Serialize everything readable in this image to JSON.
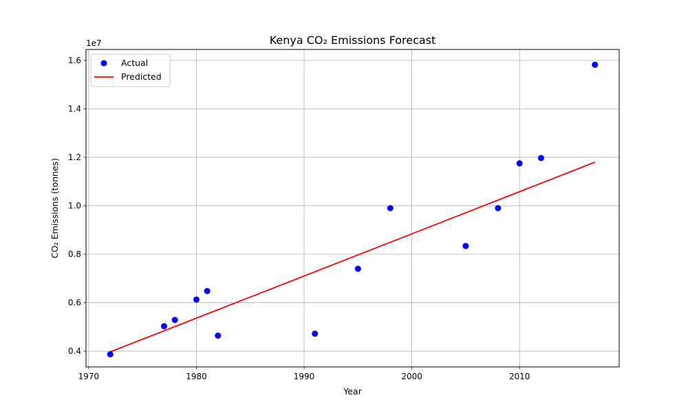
{
  "chart_data": {
    "type": "scatter",
    "title": "Kenya CO₂ Emissions Forecast",
    "xlabel": "Year",
    "ylabel": "CO₂ Emissions (tonnes)",
    "y_offset_label": "1e7",
    "xlim": [
      1969.75,
      2019.25
    ],
    "ylim": [
      3350000,
      16450000
    ],
    "x_ticks": [
      1970,
      1980,
      1990,
      2000,
      2010
    ],
    "x_tick_labels": [
      "1970",
      "1980",
      "1990",
      "2000",
      "2010"
    ],
    "y_ticks": [
      4000000,
      6000000,
      8000000,
      10000000,
      12000000,
      14000000,
      16000000
    ],
    "y_tick_labels": [
      "0.4",
      "0.6",
      "0.8",
      "1.0",
      "1.2",
      "1.4",
      "1.6"
    ],
    "grid": true,
    "legend_position": "top-left",
    "series": [
      {
        "name": "Actual",
        "kind": "scatter",
        "color": "#0000ff",
        "points": [
          {
            "x": 1972,
            "y": 3870000
          },
          {
            "x": 1977,
            "y": 5030000
          },
          {
            "x": 1978,
            "y": 5290000
          },
          {
            "x": 1980,
            "y": 6130000
          },
          {
            "x": 1981,
            "y": 6480000
          },
          {
            "x": 1982,
            "y": 4640000
          },
          {
            "x": 1991,
            "y": 4720000
          },
          {
            "x": 1995,
            "y": 7400000
          },
          {
            "x": 1998,
            "y": 9900000
          },
          {
            "x": 2005,
            "y": 8340000
          },
          {
            "x": 2008,
            "y": 9900000
          },
          {
            "x": 2010,
            "y": 11750000
          },
          {
            "x": 2012,
            "y": 11970000
          },
          {
            "x": 2017,
            "y": 15820000
          }
        ]
      },
      {
        "name": "Predicted",
        "kind": "line",
        "color": "#ff0000",
        "points": [
          {
            "x": 1972,
            "y": 3970000
          },
          {
            "x": 2017,
            "y": 11800000
          }
        ]
      }
    ]
  }
}
